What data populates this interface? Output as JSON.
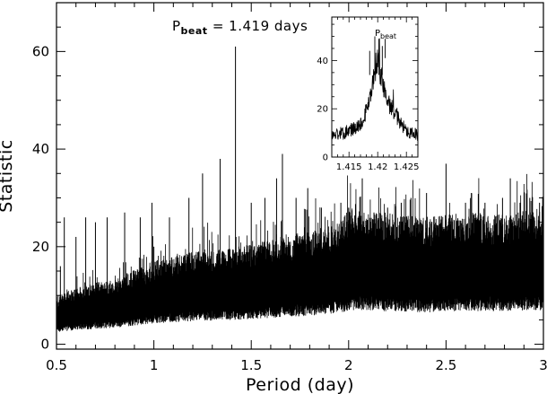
{
  "chart_data": [
    {
      "type": "line",
      "title": "",
      "xlabel": "Period (day)",
      "ylabel": "Statistic",
      "xlim": [
        0.5,
        3.0
      ],
      "ylim": [
        -1,
        70
      ],
      "x_ticks": [
        0.5,
        1,
        1.5,
        2,
        2.5,
        3
      ],
      "x_tick_labels": [
        "0.5",
        "1",
        "1.5",
        "2",
        "2.5",
        "3"
      ],
      "y_ticks": [
        0,
        20,
        40,
        60
      ],
      "y_tick_labels": [
        "0",
        "20",
        "40",
        "60"
      ],
      "grid": false,
      "legend": "none",
      "annotation": {
        "label_main": "P",
        "label_sub": "beat",
        "label_rest": " = 1.419 days",
        "x": 1.419
      },
      "series": [
        {
          "color": "#000000",
          "baseline": {
            "x": [
              0.5,
              0.6,
              0.8,
              1.0,
              1.2,
              1.4,
              1.6,
              1.8,
              1.95,
              2.0,
              2.2,
              2.4,
              2.6,
              2.8,
              3.0
            ],
            "y": [
              5.5,
              6.5,
              7.5,
              9.5,
              10.5,
              11.0,
              12.0,
              13.0,
              14.0,
              15.5,
              15.0,
              14.5,
              15.0,
              15.0,
              15.5
            ]
          },
          "peaks": [
            {
              "x": 0.52,
              "y": 16
            },
            {
              "x": 0.54,
              "y": 26
            },
            {
              "x": 0.6,
              "y": 22
            },
            {
              "x": 0.65,
              "y": 26
            },
            {
              "x": 0.7,
              "y": 25
            },
            {
              "x": 0.76,
              "y": 26
            },
            {
              "x": 0.85,
              "y": 27
            },
            {
              "x": 0.93,
              "y": 26
            },
            {
              "x": 0.99,
              "y": 29
            },
            {
              "x": 1.0,
              "y": 20
            },
            {
              "x": 1.08,
              "y": 26
            },
            {
              "x": 1.18,
              "y": 30
            },
            {
              "x": 1.25,
              "y": 35
            },
            {
              "x": 1.34,
              "y": 38
            },
            {
              "x": 1.419,
              "y": 61
            },
            {
              "x": 1.5,
              "y": 29
            },
            {
              "x": 1.57,
              "y": 30
            },
            {
              "x": 1.63,
              "y": 34
            },
            {
              "x": 1.66,
              "y": 39
            },
            {
              "x": 1.73,
              "y": 30
            },
            {
              "x": 1.79,
              "y": 32
            },
            {
              "x": 1.86,
              "y": 28
            },
            {
              "x": 1.96,
              "y": 29
            },
            {
              "x": 2.0,
              "y": 28
            },
            {
              "x": 2.07,
              "y": 34
            },
            {
              "x": 2.13,
              "y": 27
            },
            {
              "x": 2.2,
              "y": 28
            },
            {
              "x": 2.27,
              "y": 29
            },
            {
              "x": 2.32,
              "y": 30
            },
            {
              "x": 2.4,
              "y": 31
            },
            {
              "x": 2.5,
              "y": 37
            },
            {
              "x": 2.6,
              "y": 29
            },
            {
              "x": 2.63,
              "y": 31
            },
            {
              "x": 2.7,
              "y": 29
            },
            {
              "x": 2.79,
              "y": 30
            },
            {
              "x": 2.83,
              "y": 34
            },
            {
              "x": 2.88,
              "y": 29
            },
            {
              "x": 2.93,
              "y": 30
            },
            {
              "x": 2.98,
              "y": 29
            }
          ]
        }
      ]
    },
    {
      "type": "line",
      "title": "",
      "xlim": [
        1.412,
        1.427
      ],
      "ylim": [
        0,
        58
      ],
      "x_ticks": [
        1.415,
        1.42,
        1.425
      ],
      "x_tick_labels": [
        "1.415",
        "1.42",
        "1.425"
      ],
      "y_ticks": [
        0,
        20,
        40
      ],
      "y_tick_labels": [
        "0",
        "20",
        "40"
      ],
      "annotation": {
        "label_main": "P",
        "label_sub": "beat",
        "x": 1.4213
      },
      "series": [
        {
          "color": "#000000",
          "profile": {
            "x": [
              1.412,
              1.414,
              1.416,
              1.417,
              1.418,
              1.419,
              1.4195,
              1.42,
              1.4205,
              1.421,
              1.422,
              1.423,
              1.424,
              1.425,
              1.427
            ],
            "y": [
              9,
              10,
              12,
              14,
              19,
              28,
              34,
              40,
              35,
              28,
              22,
              18,
              14,
              11,
              9
            ]
          }
        }
      ]
    }
  ]
}
